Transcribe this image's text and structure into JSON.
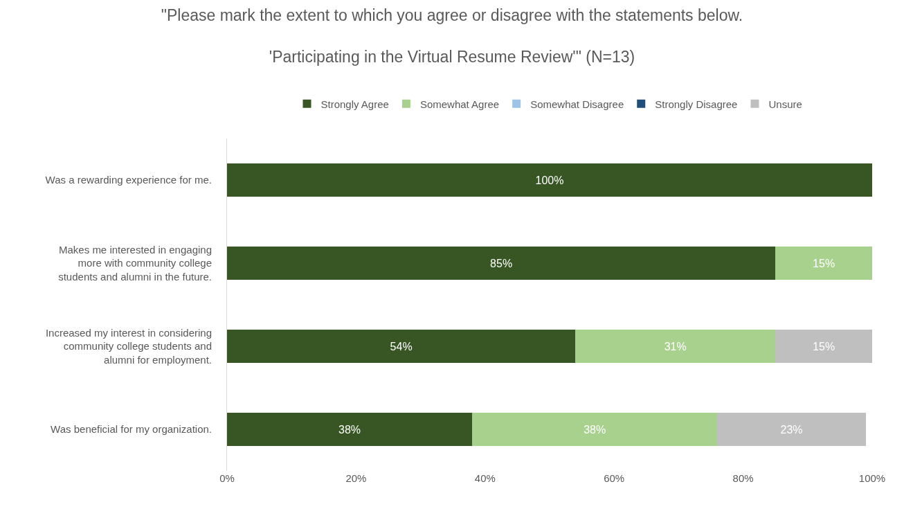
{
  "chart_data": {
    "type": "bar",
    "orientation": "horizontal",
    "stacked": true,
    "title": "\"Please mark the extent to which you agree or disagree with the statements below.\n\n'Participating in the Virtual Resume Review'\" (N=13)",
    "categories": [
      "Was a rewarding experience for me.",
      "Makes me interested in engaging\nmore with community college\nstudents and alumni in the future.",
      "Increased my interest in considering\ncommunity college students and\nalumni for employment.",
      "Was beneficial for my organization."
    ],
    "series": [
      {
        "name": "Strongly Agree",
        "color": "#375623",
        "values": [
          100,
          85,
          54,
          38
        ],
        "value_labels": [
          "100%",
          "85%",
          "54%",
          "38%"
        ]
      },
      {
        "name": "Somewhat Agree",
        "color": "#a9d18e",
        "values": [
          null,
          15,
          31,
          38
        ],
        "value_labels": [
          null,
          "15%",
          "31%",
          "38%"
        ]
      },
      {
        "name": "Somewhat Disagree",
        "color": "#9dc3e6",
        "values": [
          null,
          null,
          null,
          null
        ]
      },
      {
        "name": "Strongly Disagree",
        "color": "#1f4e79",
        "values": [
          null,
          null,
          null,
          null
        ]
      },
      {
        "name": "Unsure",
        "color": "#bfbfbf",
        "values": [
          null,
          null,
          15,
          23
        ],
        "value_labels": [
          null,
          null,
          "15%",
          "23%"
        ]
      }
    ],
    "xlim": [
      0,
      100
    ],
    "xticks": [
      {
        "value": 0,
        "label": "0%"
      },
      {
        "value": 20,
        "label": "20%"
      },
      {
        "value": 40,
        "label": "40%"
      },
      {
        "value": 60,
        "label": "60%"
      },
      {
        "value": 80,
        "label": "80%"
      },
      {
        "value": 100,
        "label": "100%"
      }
    ],
    "grid": false,
    "legend": "top"
  }
}
